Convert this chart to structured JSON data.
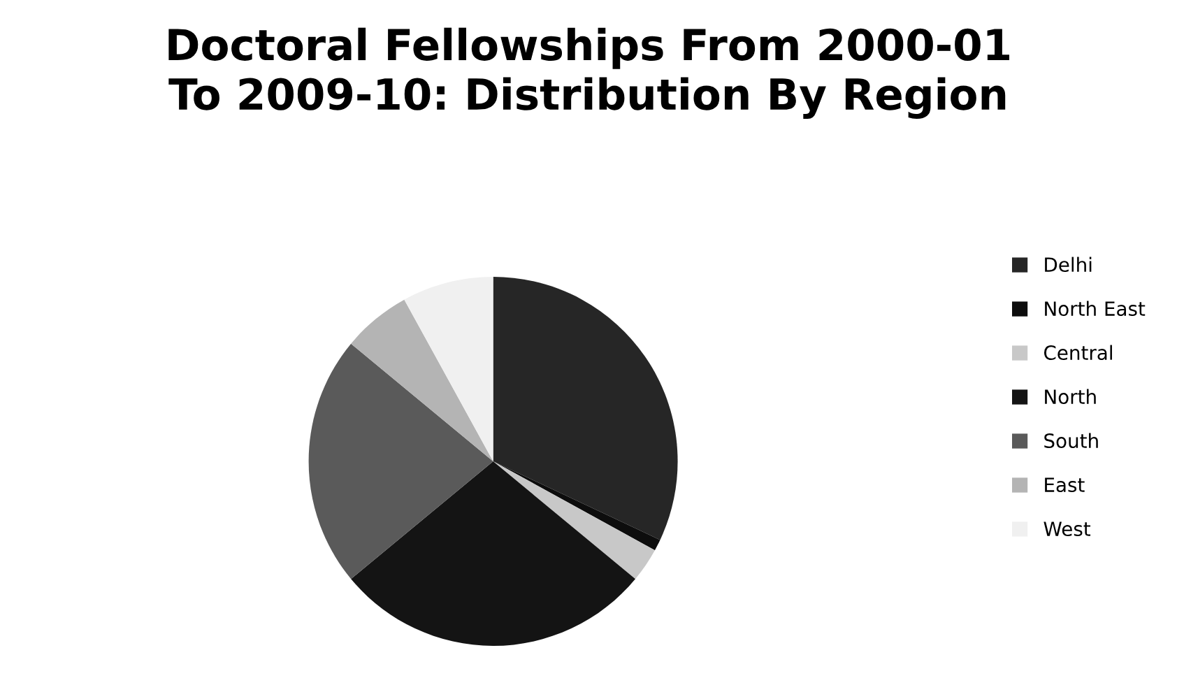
{
  "chart_data": {
    "type": "pie",
    "title": "Doctoral Fellowships From 2000-01\nTo 2009-10: Distribution By Region",
    "categories": [
      "Delhi",
      "North East",
      "Central",
      "North",
      "South",
      "East",
      "West"
    ],
    "values": [
      32,
      1,
      3,
      28,
      22,
      6,
      8
    ],
    "colors": [
      "#262626",
      "#0d0d0d",
      "#c8c8c8",
      "#141414",
      "#5a5a5a",
      "#b4b4b4",
      "#f0f0f0"
    ],
    "legend": "right"
  }
}
